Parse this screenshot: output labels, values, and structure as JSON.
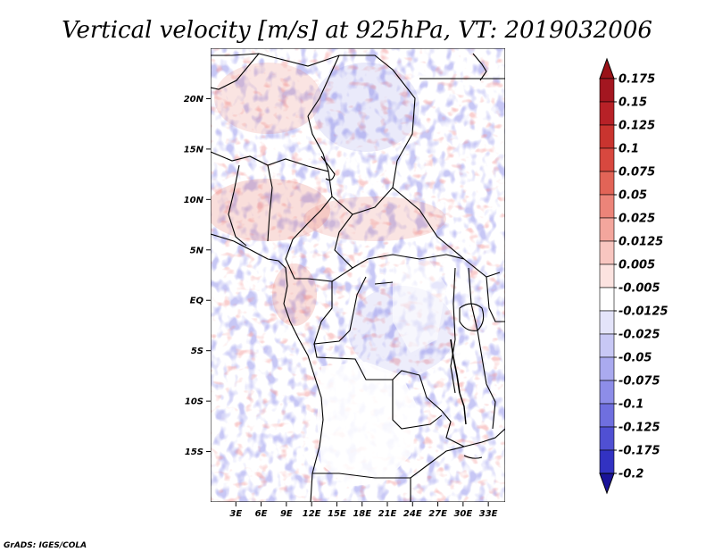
{
  "title": "Vertical velocity [m/s] at 925hPa, VT: 2019032006",
  "credit": "GrADS: IGES/COLA",
  "map": {
    "lon_range": [
      0,
      35
    ],
    "lat_range": [
      -20,
      25
    ],
    "x_ticks": [
      {
        "lon": 3,
        "label": "3E"
      },
      {
        "lon": 6,
        "label": "6E"
      },
      {
        "lon": 9,
        "label": "9E"
      },
      {
        "lon": 12,
        "label": "12E"
      },
      {
        "lon": 15,
        "label": "15E"
      },
      {
        "lon": 18,
        "label": "18E"
      },
      {
        "lon": 21,
        "label": "21E"
      },
      {
        "lon": 24,
        "label": "24E"
      },
      {
        "lon": 27,
        "label": "27E"
      },
      {
        "lon": 30,
        "label": "30E"
      },
      {
        "lon": 33,
        "label": "33E"
      }
    ],
    "y_ticks": [
      {
        "lat": 20,
        "label": "20N"
      },
      {
        "lat": 15,
        "label": "15N"
      },
      {
        "lat": 10,
        "label": "10N"
      },
      {
        "lat": 5,
        "label": "5N"
      },
      {
        "lat": 0,
        "label": "EQ"
      },
      {
        "lat": -5,
        "label": "5S"
      },
      {
        "lat": -10,
        "label": "10S"
      },
      {
        "lat": -15,
        "label": "15S"
      }
    ]
  },
  "colorbar": {
    "levels": [
      {
        "label": "0.175",
        "color": "#a31620"
      },
      {
        "label": "0.15",
        "color": "#b72127"
      },
      {
        "label": "0.125",
        "color": "#c9342f"
      },
      {
        "label": "0.1",
        "color": "#d8483f"
      },
      {
        "label": "0.075",
        "color": "#e26457"
      },
      {
        "label": "0.05",
        "color": "#ec8479"
      },
      {
        "label": "0.025",
        "color": "#f3a69d"
      },
      {
        "label": "0.0125",
        "color": "#f8c6c0"
      },
      {
        "label": "0.005",
        "color": "#fce3e0"
      },
      {
        "label": "-0.005",
        "color": "#ffffff"
      },
      {
        "label": "-0.0125",
        "color": "#e4e4fa"
      },
      {
        "label": "-0.025",
        "color": "#c8c8f5"
      },
      {
        "label": "-0.05",
        "color": "#aaaaef"
      },
      {
        "label": "-0.075",
        "color": "#8d8de8"
      },
      {
        "label": "-0.1",
        "color": "#6f6fdf"
      },
      {
        "label": "-0.125",
        "color": "#5050d3"
      },
      {
        "label": "-0.175",
        "color": "#3232c2"
      },
      {
        "label": "-0.2",
        "color": "#1c1cae"
      }
    ],
    "top_arrow_color": "#9a1218",
    "bottom_arrow_color": "#1a1399"
  }
}
